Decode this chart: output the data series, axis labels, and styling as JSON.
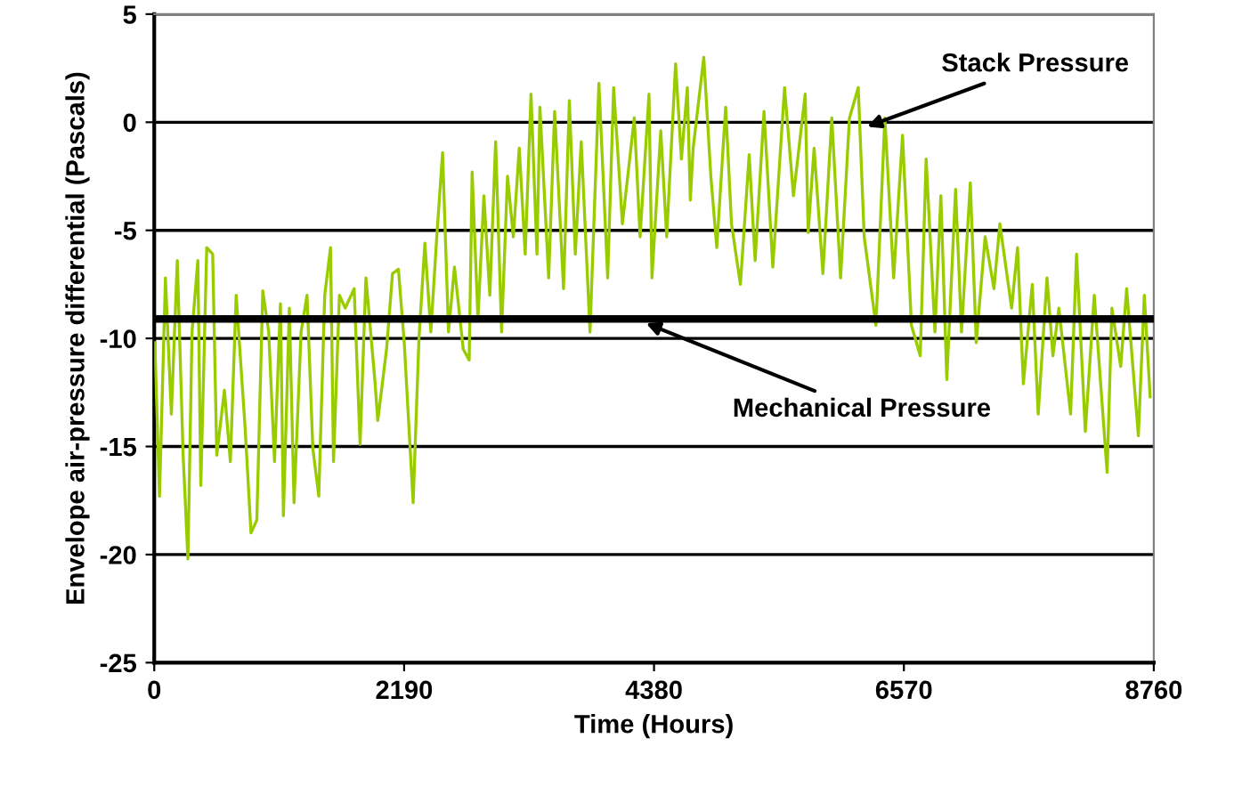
{
  "chart_data": {
    "type": "line",
    "xlabel": "Time (Hours)",
    "ylabel": "Envelope air-pressure differential (Pascals)",
    "xlim": [
      0,
      8760
    ],
    "xticks": [
      0,
      2190,
      4380,
      6570,
      8760
    ],
    "ylim": [
      -25,
      5
    ],
    "yticks": [
      -25,
      -20,
      -15,
      -10,
      -5,
      0,
      5
    ],
    "grid": "y",
    "series": [
      {
        "color": "#99cc00",
        "x": [
          5,
          46,
          98,
          150,
          202,
          253,
          295,
          331,
          382,
          408,
          460,
          512,
          548,
          615,
          667,
          718,
          796,
          848,
          899,
          951,
          1003,
          1054,
          1106,
          1132,
          1184,
          1225,
          1287,
          1339,
          1390,
          1442,
          1494,
          1545,
          1571,
          1623,
          1674,
          1752,
          1804,
          1855,
          1933,
          1959,
          2036,
          2088,
          2140,
          2191,
          2269,
          2320,
          2372,
          2424,
          2476,
          2527,
          2579,
          2631,
          2708,
          2760,
          2786,
          2837,
          2889,
          2941,
          2992,
          3044,
          3096,
          3147,
          3199,
          3251,
          3302,
          3354,
          3380,
          3457,
          3509,
          3587,
          3638,
          3690,
          3742,
          3819,
          3897,
          3974,
          4026,
          4103,
          4207,
          4258,
          4336,
          4362,
          4439,
          4491,
          4569,
          4620,
          4672,
          4698,
          4723,
          4816,
          4878,
          4930,
          5008,
          5059,
          5137,
          5214,
          5266,
          5344,
          5421,
          5524,
          5602,
          5705,
          5731,
          5783,
          5860,
          5938,
          6015,
          6093,
          6170,
          6222,
          6325,
          6403,
          6480,
          6558,
          6636,
          6713,
          6765,
          6842,
          6894,
          6946,
          7023,
          7075,
          7152,
          7204,
          7282,
          7359,
          7411,
          7514,
          7566,
          7617,
          7695,
          7747,
          7824,
          7876,
          7928,
          8031,
          8083,
          8160,
          8238,
          8351,
          8393,
          8470,
          8522,
          8625,
          8677,
          8728
        ],
        "values": [
          -10.2,
          -17.3,
          -7.2,
          -13.5,
          -6.4,
          -15.4,
          -20.2,
          -9.7,
          -6.4,
          -16.8,
          -5.8,
          -6.1,
          -15.4,
          -12.4,
          -15.7,
          -8.0,
          -14.1,
          -19.0,
          -18.4,
          -7.8,
          -9.7,
          -15.7,
          -8.4,
          -18.2,
          -8.6,
          -17.6,
          -9.7,
          -8.0,
          -15.1,
          -17.3,
          -8.0,
          -5.8,
          -15.7,
          -8.0,
          -8.6,
          -7.7,
          -14.9,
          -7.2,
          -11.9,
          -13.8,
          -10.5,
          -7.0,
          -6.8,
          -10.2,
          -17.6,
          -10.0,
          -5.6,
          -9.7,
          -5.3,
          -1.4,
          -9.7,
          -6.7,
          -10.5,
          -11.0,
          -2.3,
          -9.1,
          -3.4,
          -8.0,
          -0.9,
          -9.7,
          -2.5,
          -5.3,
          -1.2,
          -6.1,
          1.3,
          -6.1,
          0.7,
          -7.2,
          0.5,
          -7.7,
          1.0,
          -6.1,
          -0.9,
          -9.7,
          1.8,
          -7.2,
          1.6,
          -4.7,
          0.2,
          -5.3,
          1.3,
          -7.2,
          -0.4,
          -5.3,
          2.7,
          -1.7,
          1.6,
          -3.6,
          -1.2,
          3.0,
          -2.5,
          -5.8,
          0.7,
          -4.7,
          -7.5,
          -1.5,
          -6.4,
          0.5,
          -6.7,
          1.6,
          -3.4,
          1.3,
          -5.1,
          -1.2,
          -7.0,
          0.2,
          -7.2,
          0.2,
          1.6,
          -5.3,
          -9.4,
          0.2,
          -7.2,
          -0.6,
          -9.4,
          -10.8,
          -1.7,
          -9.7,
          -3.4,
          -11.9,
          -3.1,
          -9.7,
          -2.8,
          -10.2,
          -5.3,
          -7.7,
          -4.7,
          -8.6,
          -5.8,
          -12.1,
          -7.5,
          -13.5,
          -7.2,
          -10.8,
          -8.6,
          -13.5,
          -6.1,
          -14.3,
          -8.0,
          -16.2,
          -8.6,
          -11.3,
          -7.7,
          -14.5,
          -8.0,
          -12.7
        ]
      },
      {
        "color": "#000000",
        "x": [
          0,
          8760
        ],
        "values": [
          -9.1,
          -9.1
        ]
      }
    ],
    "annotations": [
      {
        "text": "Stack Pressure",
        "x": 6248,
        "y": -0.2
      },
      {
        "text": "Mechanical Pressure",
        "x": 4310,
        "y": -9.3
      }
    ]
  }
}
